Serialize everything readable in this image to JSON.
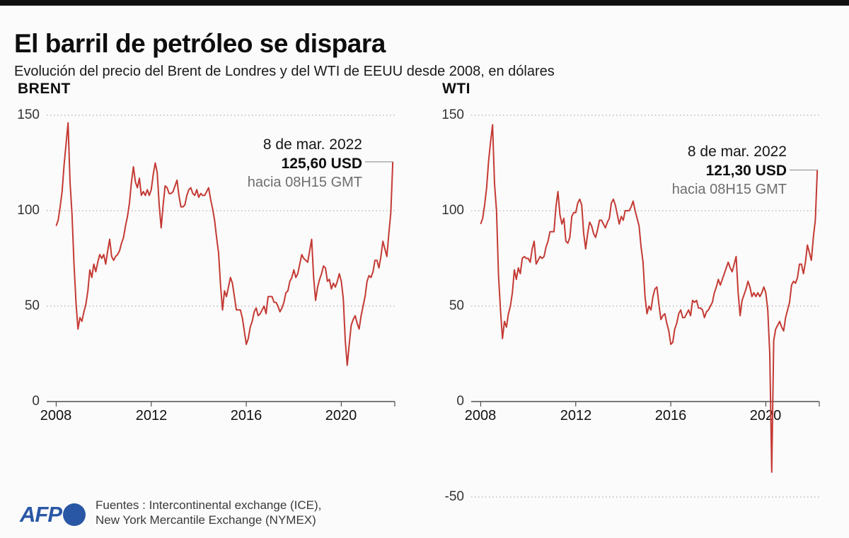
{
  "header": {
    "title": "El barril de petróleo se dispara",
    "subtitle": "Evolución del precio del Brent de Londres y del WTI de EEUU desde 2008, en dólares"
  },
  "colors": {
    "line": "#c43a34",
    "grid": "#9b9b9b",
    "axis": "#4f4f4f",
    "connector": "#9a9a9a",
    "afp_blue": "#2a57a5"
  },
  "footer": {
    "logo_text": "AFP",
    "sources_line1": "Fuentes : Intercontinental exchange (ICE),",
    "sources_line2": "New York Mercantile Exchange (NYMEX)"
  },
  "chart_data": [
    {
      "type": "line",
      "title": "BRENT",
      "unit": "USD",
      "x_start": "2008-01",
      "x_step": "month",
      "x_end": "2022-03",
      "xticks": [
        "2008",
        "2012",
        "2016",
        "2020"
      ],
      "yticks": [
        150,
        100,
        50,
        0
      ],
      "ylim": [
        0,
        150
      ],
      "grid": "dotted",
      "annotation": {
        "date": "8 de mar. 2022",
        "price": "125,60 USD",
        "time": "hacia 08H15 GMT"
      },
      "last_value": 125.6,
      "values": [
        92,
        95,
        102,
        110,
        124,
        135,
        146,
        115,
        98,
        72,
        52,
        38,
        44,
        42,
        47,
        51,
        58,
        69,
        65,
        72,
        68,
        73,
        77,
        75,
        77,
        72,
        79,
        85,
        76,
        74,
        76,
        77,
        79,
        83,
        86,
        92,
        97,
        104,
        115,
        123,
        115,
        112,
        117,
        108,
        110,
        108,
        111,
        108,
        111,
        119,
        125,
        120,
        103,
        91,
        103,
        113,
        112,
        109,
        109,
        110,
        113,
        116,
        108,
        102,
        102,
        103,
        108,
        111,
        112,
        109,
        108,
        111,
        107,
        109,
        108,
        108,
        110,
        112,
        106,
        101,
        95,
        86,
        78,
        61,
        48,
        58,
        55,
        60,
        65,
        62,
        55,
        48,
        48,
        48,
        44,
        37,
        30,
        33,
        39,
        42,
        47,
        49,
        45,
        46,
        48,
        50,
        46,
        55,
        55,
        55,
        52,
        52,
        50,
        47,
        49,
        52,
        57,
        58,
        63,
        65,
        69,
        65,
        67,
        72,
        77,
        75,
        74,
        73,
        79,
        85,
        65,
        53,
        60,
        64,
        67,
        71,
        70,
        63,
        64,
        59,
        62,
        60,
        63,
        67,
        63,
        54,
        32,
        19,
        30,
        40,
        43,
        45,
        41,
        38,
        45,
        50,
        55,
        63,
        66,
        65,
        68,
        74,
        74,
        70,
        76,
        84,
        80,
        76,
        88,
        99,
        125.6
      ]
    },
    {
      "type": "line",
      "title": "WTI",
      "unit": "USD",
      "x_start": "2008-01",
      "x_step": "month",
      "x_end": "2022-03",
      "xticks": [
        "2008",
        "2012",
        "2016",
        "2020"
      ],
      "yticks": [
        150,
        100,
        50,
        0,
        -50
      ],
      "ylim": [
        -50,
        150
      ],
      "grid": "dotted",
      "annotation": {
        "date": "8 de mar. 2022",
        "price": "121,30 USD",
        "time": "hacia 08H15 GMT"
      },
      "last_value": 121.3,
      "values": [
        93,
        96,
        103,
        112,
        126,
        136,
        145,
        114,
        100,
        66,
        48,
        33,
        42,
        39,
        46,
        50,
        57,
        69,
        64,
        70,
        67,
        75,
        76,
        75,
        75,
        73,
        80,
        84,
        72,
        74,
        76,
        75,
        76,
        81,
        84,
        89,
        89,
        89,
        102,
        110,
        98,
        93,
        96,
        84,
        83,
        86,
        97,
        99,
        99,
        104,
        106,
        103,
        88,
        80,
        88,
        94,
        92,
        88,
        86,
        90,
        95,
        95,
        93,
        91,
        94,
        96,
        104,
        106,
        103,
        98,
        93,
        97,
        95,
        100,
        100,
        100,
        102,
        105,
        100,
        96,
        92,
        81,
        73,
        55,
        46,
        50,
        48,
        55,
        59,
        60,
        51,
        43,
        45,
        46,
        41,
        37,
        30,
        31,
        38,
        41,
        46,
        48,
        44,
        44,
        46,
        48,
        45,
        53,
        52,
        53,
        49,
        49,
        48,
        44,
        47,
        48,
        50,
        52,
        57,
        60,
        64,
        61,
        64,
        67,
        70,
        73,
        70,
        68,
        72,
        76,
        57,
        45,
        53,
        56,
        59,
        63,
        60,
        55,
        57,
        55,
        57,
        55,
        57,
        60,
        57,
        48,
        25,
        -37,
        32,
        38,
        40,
        42,
        39,
        37,
        44,
        48,
        52,
        61,
        63,
        62,
        65,
        72,
        72,
        67,
        73,
        82,
        78,
        74,
        86,
        95,
        121.3
      ]
    }
  ]
}
